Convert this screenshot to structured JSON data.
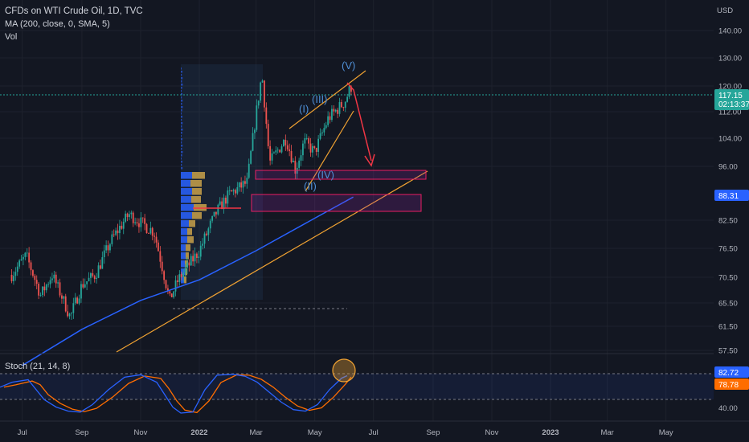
{
  "header": {
    "title": "CFDs on WTI Crude Oil, 1D, TVC",
    "indicator": "MA (200, close, 0, SMA, 5)",
    "volume": "Vol",
    "currency": "USD"
  },
  "price_tag": {
    "value": "117.15",
    "countdown": "02:13:37"
  },
  "ma_tag": "88.31",
  "stoch": {
    "label": "Stoch (21, 14, 8)",
    "k_tag": "82.72",
    "d_tag": "78.78",
    "tick": "40.00"
  },
  "colors": {
    "bg": "#131722",
    "up": "#26a69a",
    "down": "#ef5350",
    "ma": "#2962ff",
    "trend": "#f0a232",
    "stoch_k": "#2962ff",
    "stoch_d": "#ff6d00",
    "zone": "#9c27b0",
    "arrow": "#f23645"
  },
  "chart_data": {
    "type": "line",
    "title": "CFDs on WTI Crude Oil, 1D, TVC",
    "price_axis": [
      "140.00",
      "130.00",
      "120.00",
      "112.00",
      "104.00",
      "96.00",
      "82.50",
      "76.50",
      "70.50",
      "65.50",
      "61.50",
      "57.50"
    ],
    "time_axis": [
      "Jul",
      "Sep",
      "Nov",
      "2022",
      "Mar",
      "May",
      "Jul",
      "Sep",
      "Nov",
      "2023",
      "Mar",
      "May"
    ],
    "series": [
      {
        "name": "CFDs on WTI Crude Oil",
        "x": [
          "2021-06-20",
          "2021-07-05",
          "2021-07-20",
          "2021-08-01",
          "2021-08-20",
          "2021-09-01",
          "2021-09-15",
          "2021-10-01",
          "2021-10-20",
          "2021-11-01",
          "2021-11-15",
          "2021-12-01",
          "2021-12-10",
          "2022-01-01",
          "2022-01-20",
          "2022-02-01",
          "2022-02-20",
          "2022-03-07",
          "2022-03-15",
          "2022-04-01",
          "2022-04-11",
          "2022-04-20",
          "2022-05-01",
          "2022-05-15",
          "2022-06-01",
          "2022-06-08"
        ],
        "values": [
          71,
          75,
          67,
          71,
          63,
          69,
          71,
          78,
          84,
          82,
          80,
          66,
          70,
          76,
          85,
          89,
          92,
          124,
          97,
          104,
          95,
          103,
          100,
          110,
          115,
          120
        ]
      },
      {
        "name": "MA (200, close, 0, SMA, 5)",
        "x": [
          "2021-07-01",
          "2021-09-01",
          "2021-11-01",
          "2022-01-01",
          "2022-03-01",
          "2022-05-01",
          "2022-06-10"
        ],
        "values": [
          55,
          61,
          66,
          70,
          76,
          83,
          88.3
        ]
      }
    ],
    "stoch_k": 82.72,
    "stoch_d": 78.78,
    "wave_labels": [
      "(I)",
      "(II)",
      "(III)",
      "(IV)",
      "(V)"
    ]
  }
}
